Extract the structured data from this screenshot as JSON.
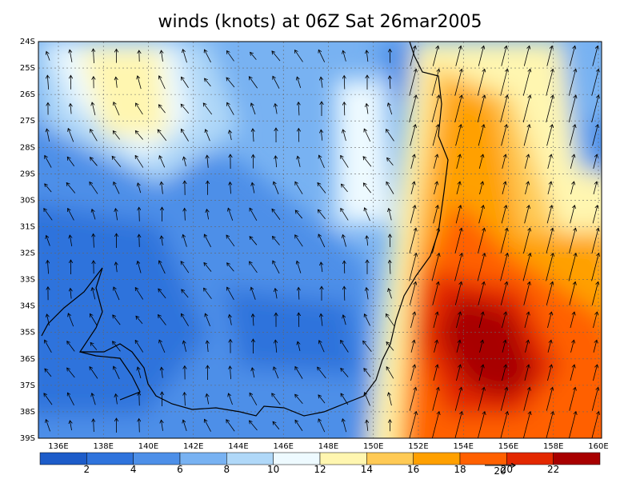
{
  "map": {
    "title": "winds (knots) at 06Z Sat 26mar2005",
    "lat_labels": [
      "24S",
      "25S",
      "26S",
      "27S",
      "28S",
      "29S",
      "30S",
      "31S",
      "32S",
      "33S",
      "34S",
      "35S",
      "36S",
      "37S",
      "38S",
      "39S"
    ],
    "lon_labels": [
      "136E",
      "138E",
      "140E",
      "142E",
      "144E",
      "146E",
      "148E",
      "150E",
      "152E",
      "154E",
      "156E",
      "158E",
      "160E"
    ],
    "colorbar": {
      "labels": [
        2,
        4,
        6,
        8,
        10,
        12,
        14,
        16,
        18,
        20,
        22
      ],
      "colors": [
        "#1d5cc9",
        "#2f73dc",
        "#4d8fe8",
        "#78b2f2",
        "#b0d8f8",
        "#eefaff",
        "#fff6b0",
        "#ffca55",
        "#ffa000",
        "#ff6000",
        "#e32800",
        "#a80000"
      ]
    },
    "vector_reference_label": "20"
  }
}
